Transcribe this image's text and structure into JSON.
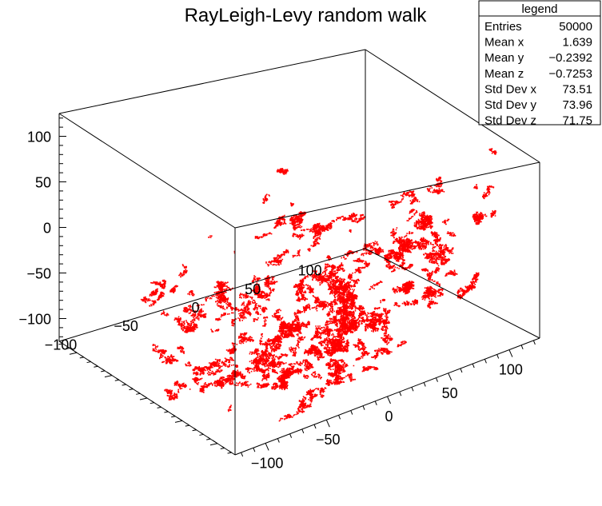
{
  "chart_data": {
    "type": "scatter",
    "title": "RayLeigh-Levy random walk",
    "marker_color": "#ff0000",
    "frame_color": "#000000",
    "axes": {
      "x": {
        "range": [
          -125,
          125
        ],
        "tick_labels": [
          "−100",
          "−50",
          "0",
          "50",
          "100"
        ],
        "tick_values": [
          -100,
          -50,
          0,
          50,
          100
        ]
      },
      "y": {
        "range": [
          -125,
          125
        ],
        "tick_labels": [
          "100",
          "50",
          "0",
          "−50",
          "−100"
        ],
        "tick_values": [
          100,
          50,
          0,
          -50,
          -100
        ]
      },
      "z": {
        "range": [
          -125,
          125
        ],
        "tick_labels": [
          "100",
          "50",
          "0",
          "−50",
          "−100"
        ],
        "tick_values": [
          100,
          50,
          0,
          -50,
          -100
        ]
      }
    },
    "stats": {
      "header": "legend",
      "rows": [
        {
          "label": "Entries",
          "value": "50000"
        },
        {
          "label": "Mean x",
          "value": "1.639"
        },
        {
          "label": "Mean y",
          "value": "−0.2392"
        },
        {
          "label": "Mean z",
          "value": "−0.7253"
        },
        {
          "label": "Std Dev x",
          "value": "73.51"
        },
        {
          "label": "Std Dev y",
          "value": "73.96"
        },
        {
          "label": "Std Dev z",
          "value": "71.75"
        }
      ]
    },
    "points_drawn": 50000
  }
}
